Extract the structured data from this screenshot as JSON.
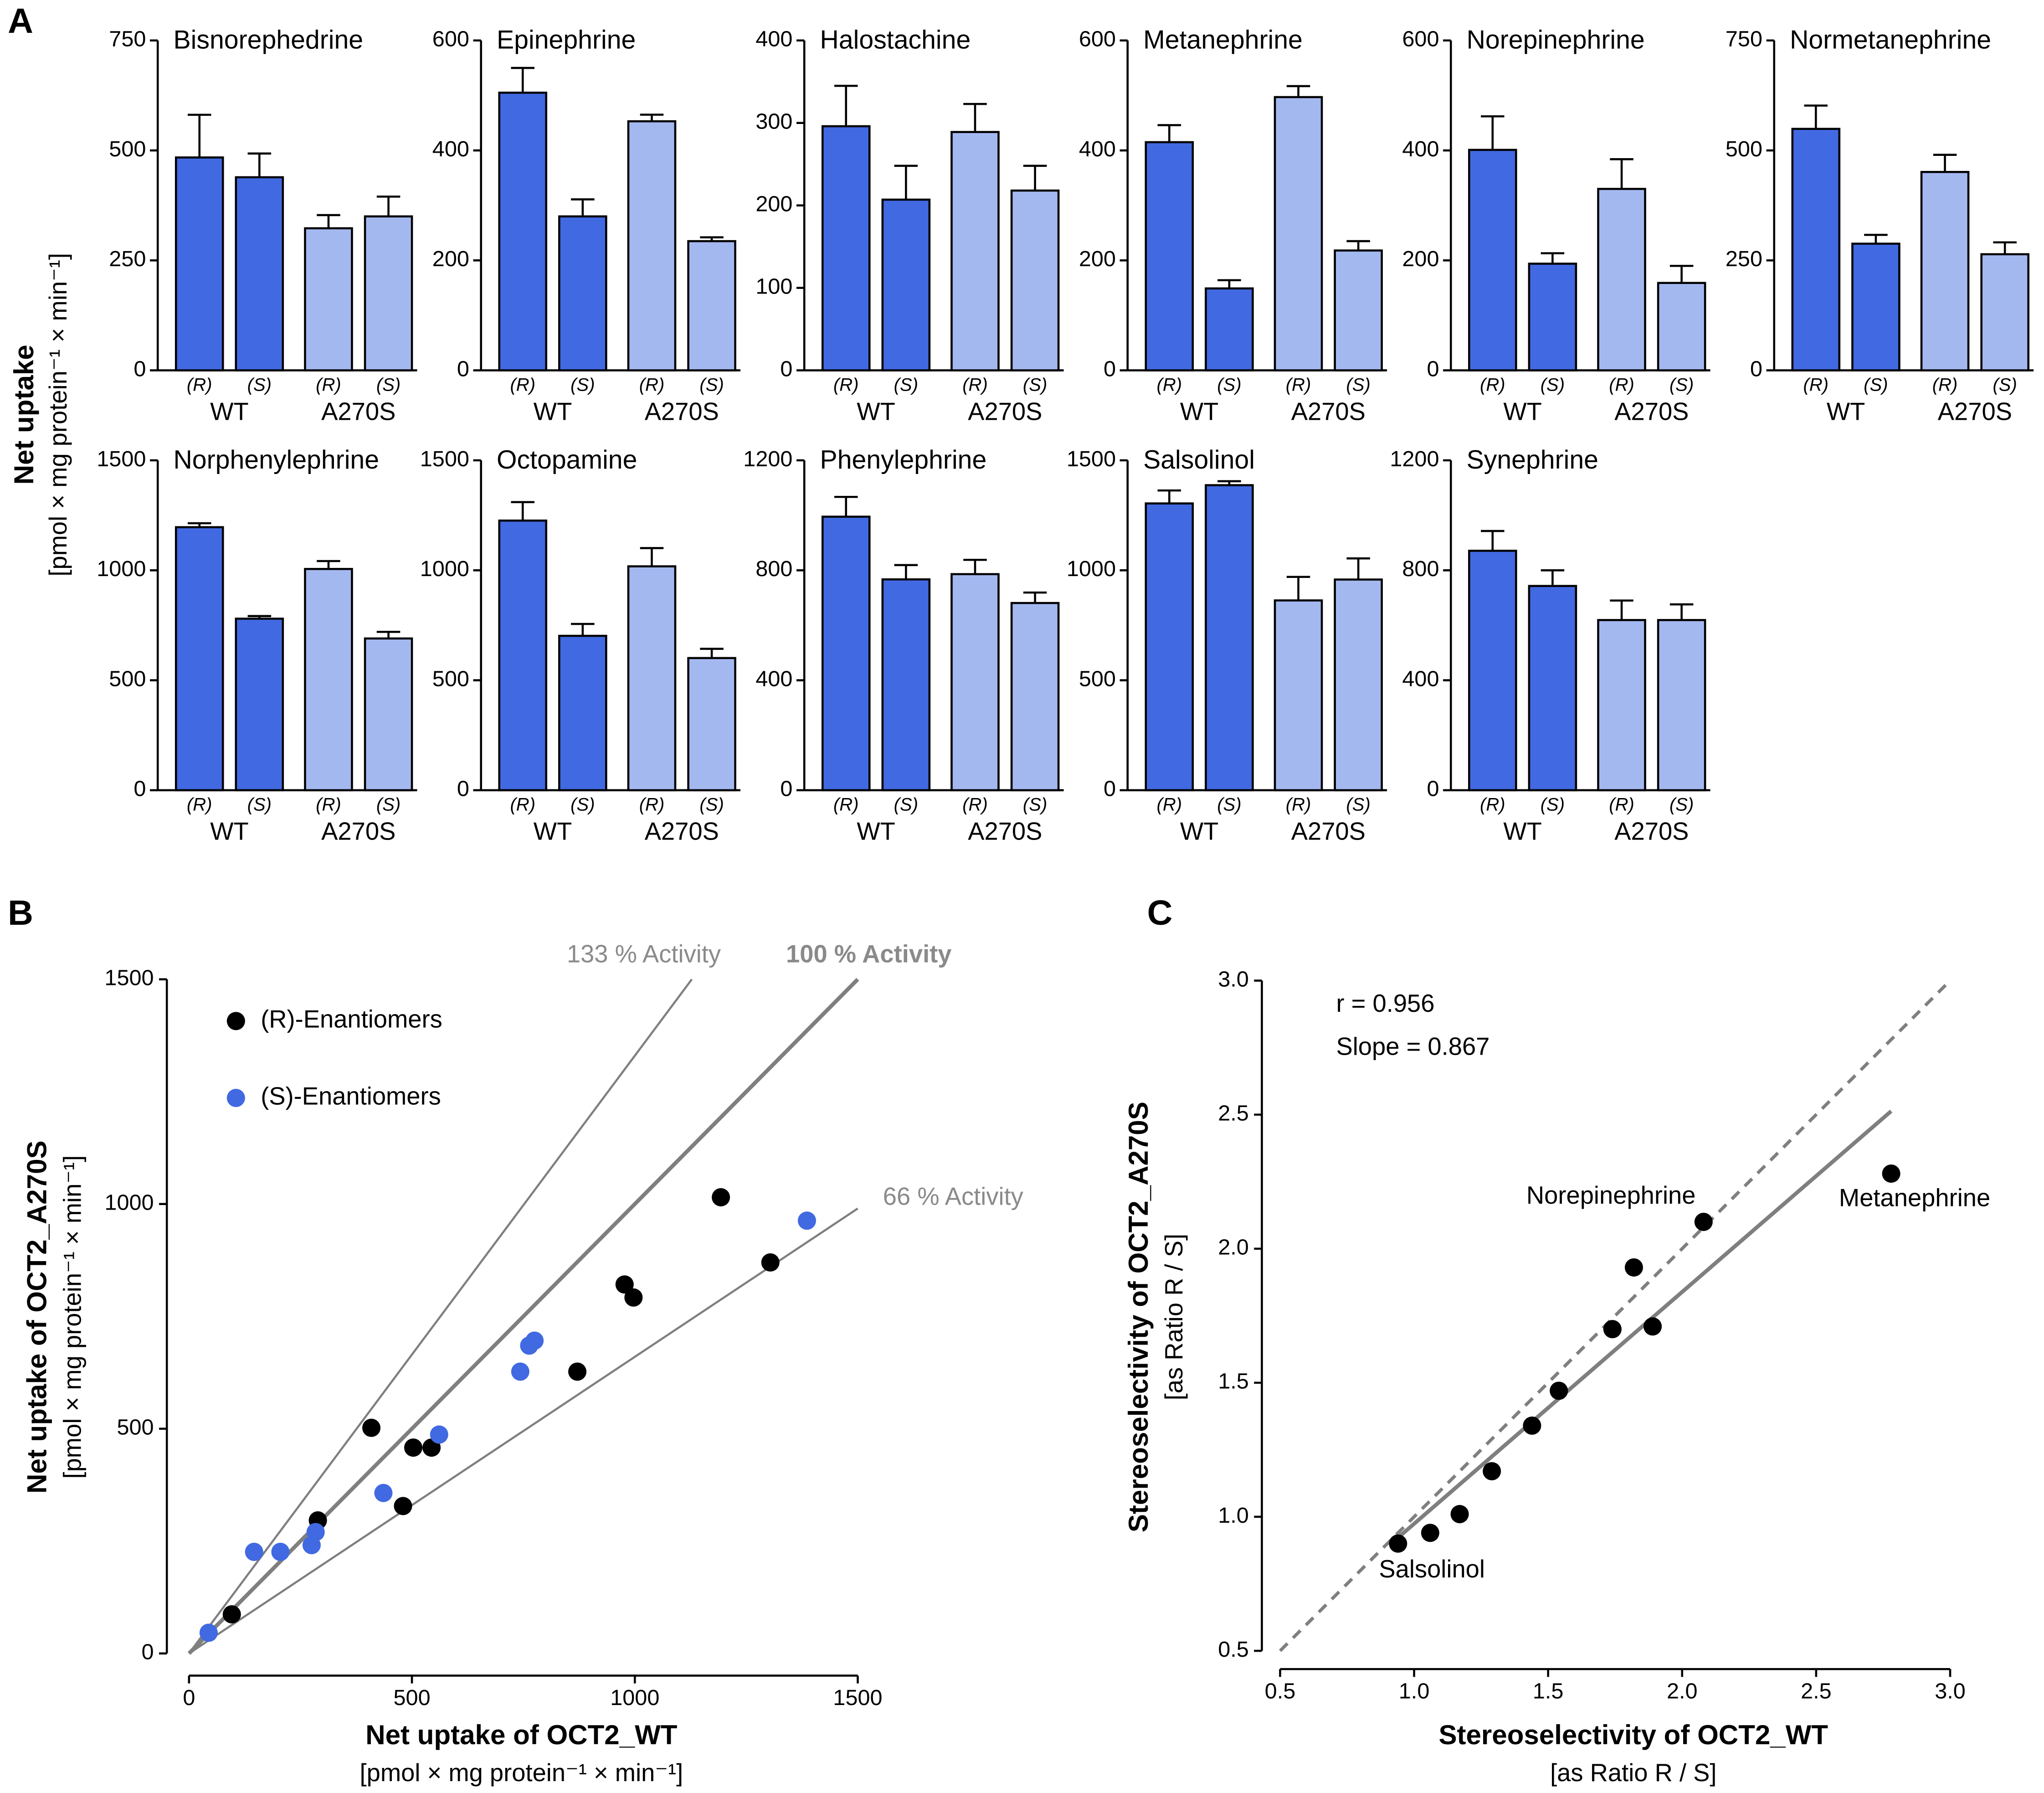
{
  "figure": {
    "panel_labels": [
      "A",
      "B",
      "C"
    ],
    "bar_ylabel": "Net uptake",
    "bar_yunits": "[pmol × mg protein⁻¹ × min⁻¹]"
  },
  "chart_data": [
    {
      "type": "bar",
      "title": "Bisnorephedrine",
      "categories": [
        "(R)",
        "(S)"
      ],
      "ylim": [
        0,
        750
      ],
      "yticks": [
        0,
        250,
        500,
        750
      ],
      "series": [
        {
          "name": "WT",
          "color": "#4169e1",
          "values": [
            484,
            439
          ],
          "errors": [
            97,
            54
          ]
        },
        {
          "name": "A270S",
          "color": "#a4b8f0",
          "values": [
            323,
            350
          ],
          "errors": [
            30,
            45
          ]
        }
      ]
    },
    {
      "type": "bar",
      "title": "Epinephrine",
      "categories": [
        "(R)",
        "(S)"
      ],
      "ylim": [
        0,
        600
      ],
      "yticks": [
        0,
        200,
        400,
        600
      ],
      "series": [
        {
          "name": "WT",
          "color": "#4169e1",
          "values": [
            505,
            280
          ],
          "errors": [
            45,
            31
          ]
        },
        {
          "name": "A270S",
          "color": "#a4b8f0",
          "values": [
            453,
            235
          ],
          "errors": [
            12,
            7
          ]
        }
      ]
    },
    {
      "type": "bar",
      "title": "Halostachine",
      "categories": [
        "(R)",
        "(S)"
      ],
      "ylim": [
        0,
        400
      ],
      "yticks": [
        0,
        100,
        200,
        300,
        400
      ],
      "series": [
        {
          "name": "WT",
          "color": "#4169e1",
          "values": [
            296,
            207
          ],
          "errors": [
            49,
            41
          ]
        },
        {
          "name": "A270S",
          "color": "#a4b8f0",
          "values": [
            289,
            218
          ],
          "errors": [
            34,
            30
          ]
        }
      ]
    },
    {
      "type": "bar",
      "title": "Metanephrine",
      "categories": [
        "(R)",
        "(S)"
      ],
      "ylim": [
        0,
        600
      ],
      "yticks": [
        0,
        200,
        400,
        600
      ],
      "series": [
        {
          "name": "WT",
          "color": "#4169e1",
          "values": [
            415,
            149
          ],
          "errors": [
            31,
            15
          ]
        },
        {
          "name": "A270S",
          "color": "#a4b8f0",
          "values": [
            497,
            218
          ],
          "errors": [
            20,
            17
          ]
        }
      ]
    },
    {
      "type": "bar",
      "title": "Norepinephrine",
      "categories": [
        "(R)",
        "(S)"
      ],
      "ylim": [
        0,
        600
      ],
      "yticks": [
        0,
        200,
        400,
        600
      ],
      "series": [
        {
          "name": "WT",
          "color": "#4169e1",
          "values": [
            401,
            194
          ],
          "errors": [
            61,
            19
          ]
        },
        {
          "name": "A270S",
          "color": "#a4b8f0",
          "values": [
            330,
            159
          ],
          "errors": [
            54,
            31
          ]
        }
      ]
    },
    {
      "type": "bar",
      "title": "Normetanephrine",
      "categories": [
        "(R)",
        "(S)"
      ],
      "ylim": [
        0,
        750
      ],
      "yticks": [
        0,
        250,
        500,
        750
      ],
      "series": [
        {
          "name": "WT",
          "color": "#4169e1",
          "values": [
            549,
            288
          ],
          "errors": [
            53,
            20
          ]
        },
        {
          "name": "A270S",
          "color": "#a4b8f0",
          "values": [
            451,
            264
          ],
          "errors": [
            39,
            27
          ]
        }
      ]
    },
    {
      "type": "bar",
      "title": "Norphenylephrine",
      "categories": [
        "(R)",
        "(S)"
      ],
      "ylim": [
        0,
        1500
      ],
      "yticks": [
        0,
        500,
        1000,
        1500
      ],
      "series": [
        {
          "name": "WT",
          "color": "#4169e1",
          "values": [
            1196,
            780
          ],
          "errors": [
            18,
            12
          ]
        },
        {
          "name": "A270S",
          "color": "#a4b8f0",
          "values": [
            1006,
            690
          ],
          "errors": [
            36,
            30
          ]
        }
      ]
    },
    {
      "type": "bar",
      "title": "Octopamine",
      "categories": [
        "(R)",
        "(S)"
      ],
      "ylim": [
        0,
        1500
      ],
      "yticks": [
        0,
        500,
        1000,
        1500
      ],
      "series": [
        {
          "name": "WT",
          "color": "#4169e1",
          "values": [
            1226,
            702
          ],
          "errors": [
            84,
            54
          ]
        },
        {
          "name": "A270S",
          "color": "#a4b8f0",
          "values": [
            1018,
            601
          ],
          "errors": [
            83,
            42
          ]
        }
      ]
    },
    {
      "type": "bar",
      "title": "Phenylephrine",
      "categories": [
        "(R)",
        "(S)"
      ],
      "ylim": [
        0,
        1200
      ],
      "yticks": [
        0,
        400,
        800,
        1200
      ],
      "series": [
        {
          "name": "WT",
          "color": "#4169e1",
          "values": [
            995,
            767
          ],
          "errors": [
            72,
            52
          ]
        },
        {
          "name": "A270S",
          "color": "#a4b8f0",
          "values": [
            786,
            681
          ],
          "errors": [
            52,
            38
          ]
        }
      ]
    },
    {
      "type": "bar",
      "title": "Salsolinol",
      "categories": [
        "(R)",
        "(S)"
      ],
      "ylim": [
        0,
        1500
      ],
      "yticks": [
        0,
        500,
        1000,
        1500
      ],
      "series": [
        {
          "name": "WT",
          "color": "#4169e1",
          "values": [
            1304,
            1387
          ],
          "errors": [
            59,
            18
          ]
        },
        {
          "name": "A270S",
          "color": "#a4b8f0",
          "values": [
            863,
            958
          ],
          "errors": [
            107,
            96
          ]
        }
      ]
    },
    {
      "type": "bar",
      "title": "Synephrine",
      "categories": [
        "(R)",
        "(S)"
      ],
      "ylim": [
        0,
        1200
      ],
      "yticks": [
        0,
        400,
        800,
        1200
      ],
      "series": [
        {
          "name": "WT",
          "color": "#4169e1",
          "values": [
            871,
            743
          ],
          "errors": [
            72,
            57
          ]
        },
        {
          "name": "A270S",
          "color": "#a4b8f0",
          "values": [
            619,
            619
          ],
          "errors": [
            71,
            57
          ]
        }
      ]
    },
    {
      "type": "scatter",
      "xlabel": "Net uptake of OCT2_WT",
      "xunits": "[pmol × mg protein⁻¹ × min⁻¹]",
      "ylabel": "Net uptake of OCT2_A270S",
      "yunits": "[pmol × mg protein⁻¹ × min⁻¹]",
      "xlim": [
        0,
        1500
      ],
      "ylim": [
        0,
        1500
      ],
      "xticks": [
        0,
        500,
        1000,
        1500
      ],
      "yticks": [
        0,
        500,
        1000,
        1500
      ],
      "legend": "upper left",
      "lines": [
        {
          "label": "133 % Activity",
          "slope": 1.33
        },
        {
          "label": "100 % Activity",
          "slope": 1
        },
        {
          "label": "66 % Activity",
          "slope": 0.66
        }
      ],
      "series": [
        {
          "name": "(R)-Enantiomers",
          "color": "#000000",
          "x": [
            96,
            289,
            409,
            480,
            503,
            544,
            871,
            977,
            997,
            1193,
            1304
          ],
          "y": [
            87,
            296,
            502,
            328,
            458,
            458,
            627,
            821,
            792,
            1015,
            870
          ]
        },
        {
          "name": "(S)-Enantiomers",
          "color": "#4169e1",
          "x": [
            44,
            146,
            205,
            275,
            284,
            436,
            561,
            743,
            763,
            775,
            1386
          ],
          "y": [
            46,
            226,
            226,
            241,
            270,
            357,
            487,
            627,
            685,
            696,
            963
          ]
        }
      ]
    },
    {
      "type": "scatter",
      "xlabel": "Stereoselectivity of OCT2_WT",
      "xunits": "[as Ratio R / S]",
      "ylabel": "Stereoselectivity of OCT2_A270S",
      "yunits": "[as Ratio R / S]",
      "xlim": [
        0.5,
        3
      ],
      "ylim": [
        0.5,
        3
      ],
      "xticks": [
        0.5,
        {
          "value": 1,
          "label": "1.0"
        },
        1.5,
        {
          "value": 2,
          "label": "2.0"
        },
        2.5,
        {
          "value": 3,
          "label": "3.0"
        }
      ],
      "yticks": [
        0.5,
        {
          "value": 1,
          "label": "1.0"
        },
        1.5,
        {
          "value": 2,
          "label": "2.0"
        },
        2.5,
        {
          "value": 3,
          "label": "3.0"
        }
      ],
      "identity_line": true,
      "regression_line": true,
      "annotations": [
        "r = 0.956",
        "Slope = 0.867"
      ],
      "series": [
        {
          "color": "#000000",
          "x": [
            0.94,
            1.06,
            1.17,
            1.29,
            1.44,
            1.54,
            1.74,
            1.82,
            1.89,
            2.08,
            2.78
          ],
          "y": [
            0.9,
            0.94,
            1.01,
            1.17,
            1.34,
            1.47,
            1.7,
            1.93,
            1.71,
            2.1,
            2.28
          ],
          "labels": [
            "Salsolinol",
            null,
            null,
            null,
            null,
            null,
            null,
            null,
            null,
            "Norepinephrine",
            "Metanephrine"
          ]
        }
      ]
    }
  ]
}
